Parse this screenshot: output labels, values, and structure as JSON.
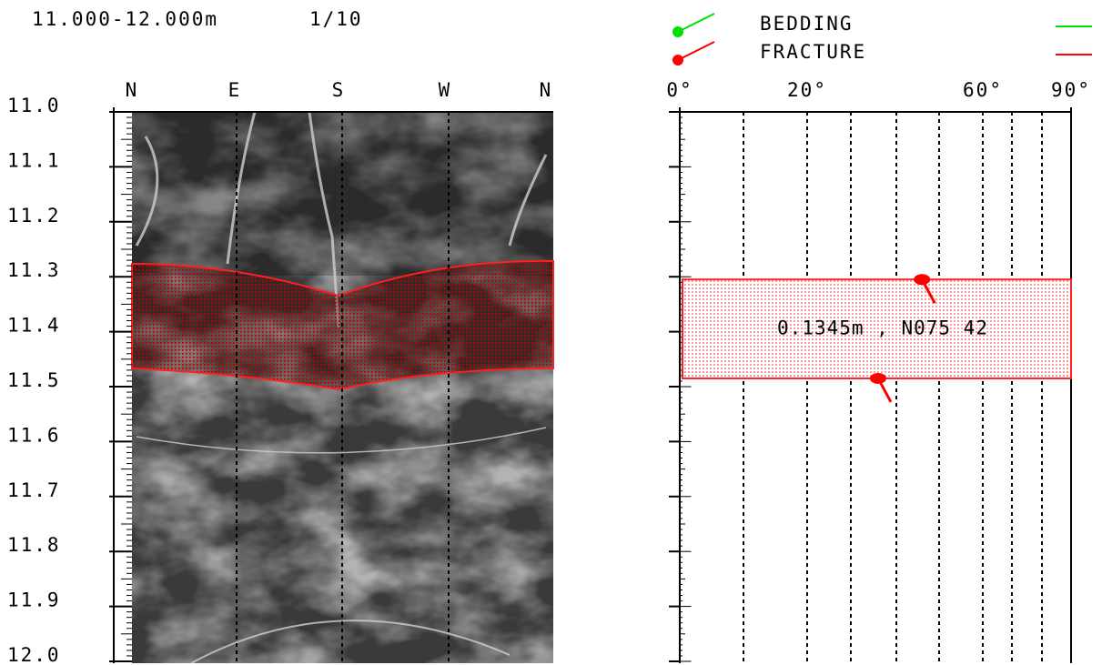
{
  "header": {
    "interval": "11.000-12.000m",
    "scale": "1/10"
  },
  "legend": [
    {
      "label": "BEDDING",
      "color": "#00e000"
    },
    {
      "label": "FRACTURE",
      "color": "#ff0000"
    }
  ],
  "image_track": {
    "azimuth_labels": [
      "N",
      "E",
      "S",
      "W",
      "N"
    ]
  },
  "depth_axis": {
    "ticks": [
      {
        "value": 11.0,
        "label": "11.0"
      },
      11.1,
      11.2,
      11.3,
      11.4,
      11.5,
      11.6,
      11.7,
      11.8,
      11.9,
      {
        "value": 12.0,
        "label": "12.0"
      }
    ]
  },
  "dip_track": {
    "ticks": [
      {
        "value": 0,
        "label": "0°"
      },
      {
        "value": 20,
        "label": "20°"
      },
      {
        "value": 60,
        "label": "60°"
      },
      {
        "value": 90,
        "label": "90°"
      }
    ],
    "tadpoles": [
      {
        "depth": 11.305,
        "dip": 46
      },
      {
        "depth": 11.485,
        "dip": 36
      }
    ]
  },
  "fracture_zone": {
    "top": 11.305,
    "bottom": 11.485,
    "label": "0.1345m , N075 42"
  }
}
